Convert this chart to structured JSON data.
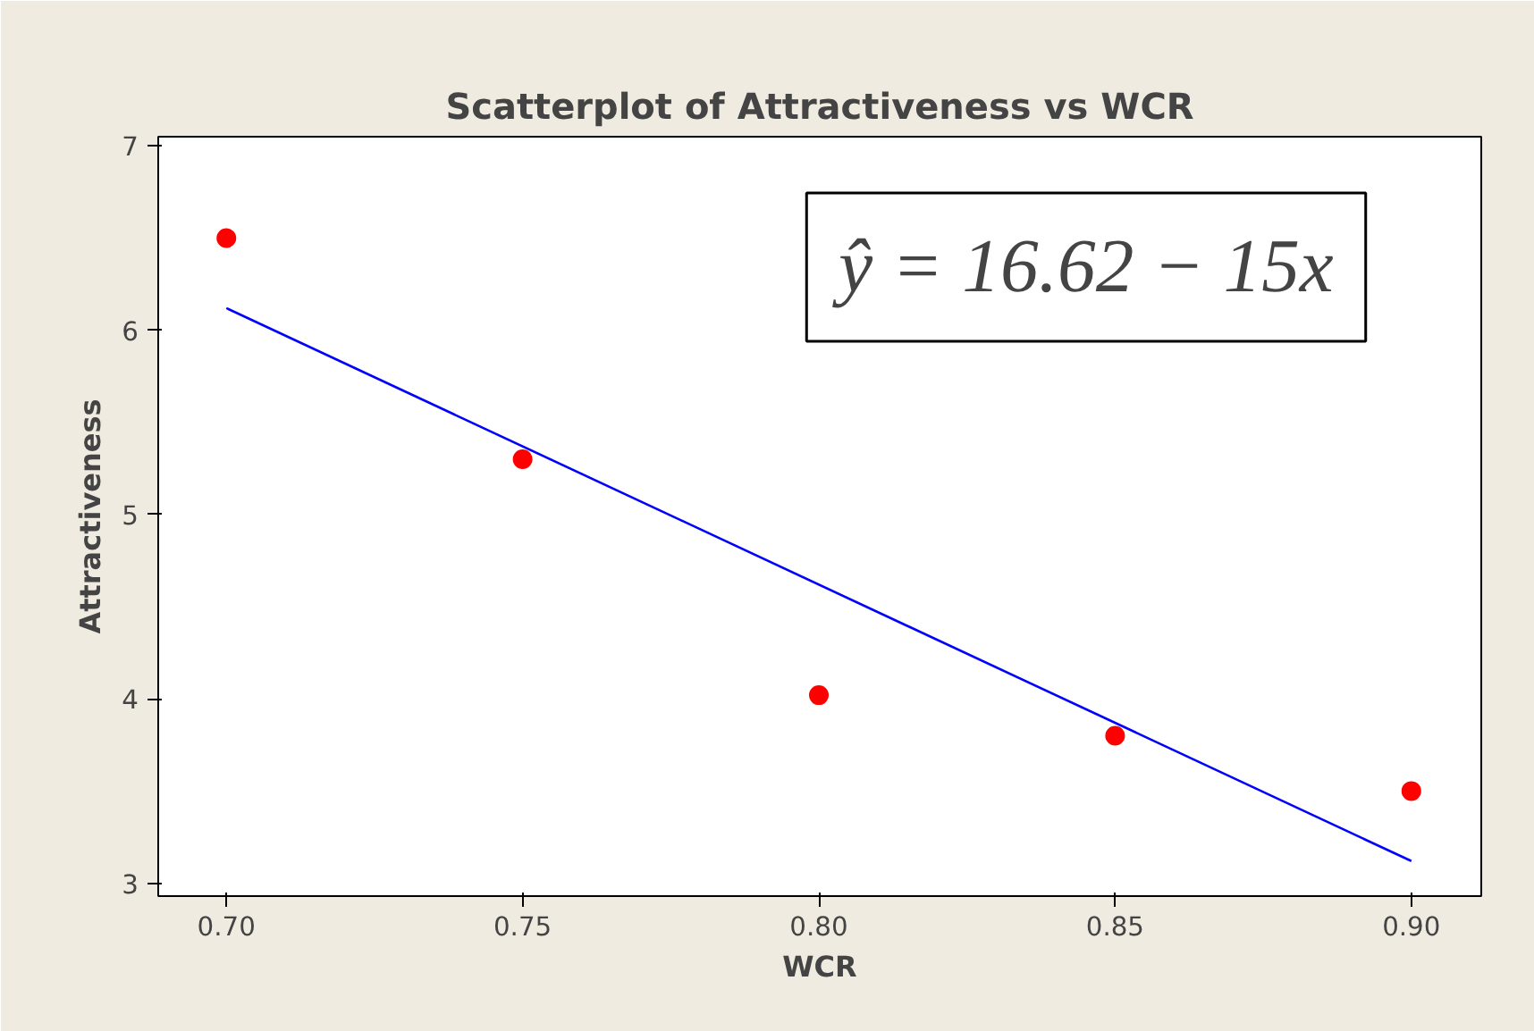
{
  "chart_data": {
    "type": "scatter",
    "title": "Scatterplot of Attractiveness vs WCR",
    "xlabel": "WCR",
    "ylabel": "Attractiveness",
    "x": [
      0.7,
      0.75,
      0.8,
      0.85,
      0.9
    ],
    "series": [
      {
        "color": "#ff0000",
        "values": [
          6.5,
          5.3,
          4.02,
          3.8,
          3.5
        ],
        "marker": "circle"
      },
      {
        "type": "line",
        "color": "#0000ff",
        "x": [
          0.7,
          0.9
        ],
        "values": [
          6.12,
          3.12
        ],
        "marker": "none"
      }
    ],
    "annotations": [
      "ŷ = 16.62 − 15x"
    ],
    "xlim": [
      0.6885,
      0.9118
    ],
    "ylim": [
      2.93,
      7.05
    ],
    "xticks": [
      {
        "value": 0.7,
        "label": "0.70"
      },
      {
        "value": 0.75,
        "label": "0.75"
      },
      {
        "value": 0.8,
        "label": "0.80"
      },
      {
        "value": 0.85,
        "label": "0.85"
      },
      {
        "value": 0.9,
        "label": "0.90"
      }
    ],
    "yticks": [
      3,
      4,
      5,
      6,
      7
    ]
  }
}
